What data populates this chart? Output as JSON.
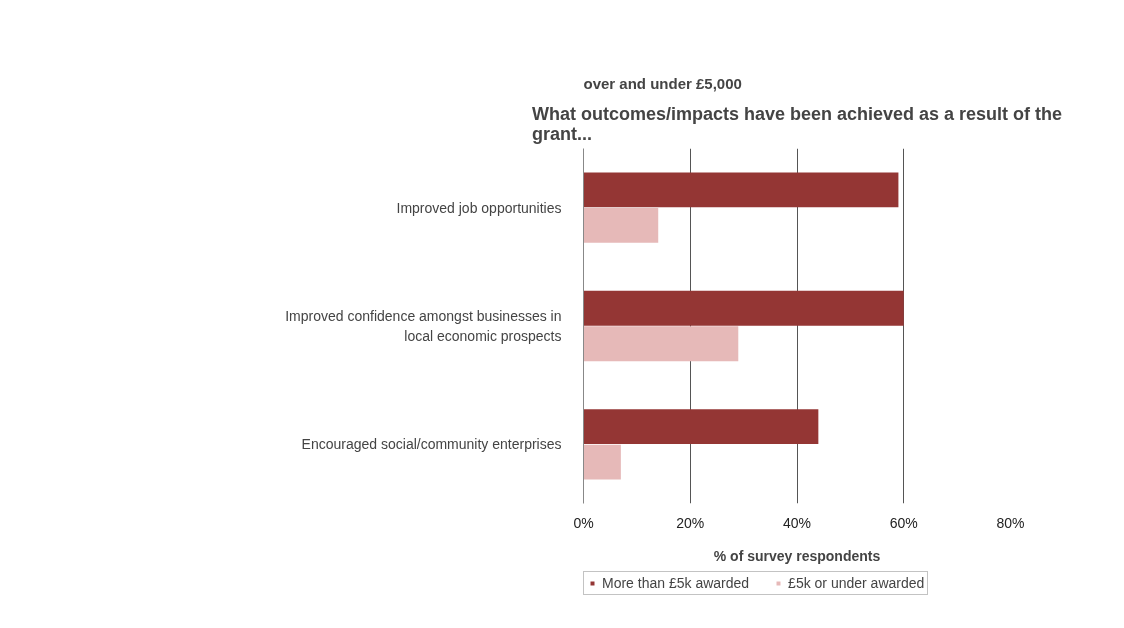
{
  "chart_data": {
    "type": "bar",
    "orientation": "horizontal",
    "title": "What outcomes/impacts have been achieved as a result of the grant...",
    "annotations": [
      "over and under £5,000"
    ],
    "xlabel": "% of survey respondents",
    "categories": [
      "Improved job opportunities",
      "Improved confidence amongst businesses in local economic prospects",
      "Encouraged social/community enterprises"
    ],
    "series": [
      {
        "name": "More than £5k awarded",
        "color": "#943634",
        "values": [
          59,
          60,
          44
        ]
      },
      {
        "name": "£5k or under awarded",
        "color": "#e6b9b8",
        "values": [
          14,
          29,
          7
        ]
      }
    ],
    "xlim": [
      0,
      80
    ],
    "xticks": [
      {
        "value": 0,
        "label": "0%"
      },
      {
        "value": 20,
        "label": "20%"
      },
      {
        "value": 40,
        "label": "40%"
      },
      {
        "value": 60,
        "label": "60%"
      },
      {
        "value": 80,
        "label": "80%"
      }
    ],
    "grid": "x",
    "legend": "bottom"
  }
}
